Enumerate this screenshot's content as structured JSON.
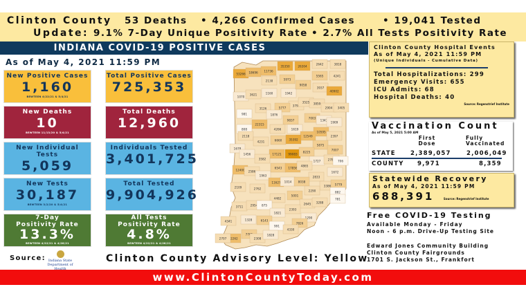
{
  "header": {
    "county": "Clinton County",
    "deaths": "53 Deaths",
    "cases": "• 4,266 Confirmed Cases",
    "tested": "• 19,041 Tested",
    "update_label": "Update:",
    "seven_day": "9.1% 7-Day Unique Positivity Rate",
    "all_tests": "• 2.7% All Tests Positivity Rate"
  },
  "banner": "INDIANA COVID-19 POSITIVE CASES",
  "as_of": "As of May 4, 2021 11:59 PM",
  "stats": [
    {
      "title": "New Positive Cases",
      "value": "1,160",
      "sub": "BEWTEEN 4/22/21 & 5/4/21",
      "color": "#f9bf3b"
    },
    {
      "title": "Total Positive Cases",
      "value": "725,353",
      "sub": "",
      "color": "#f9bf3b"
    },
    {
      "title": "New Deaths",
      "value": "10",
      "sub": "BEWTEEN 11/13/20 & 5/4/21",
      "color": "#a0243d"
    },
    {
      "title": "Total Deaths",
      "value": "12,960",
      "sub": "",
      "color": "#a0243d"
    },
    {
      "title": "New Individual Tests",
      "value": "5,059",
      "sub": "",
      "color": "#5ab4e2"
    },
    {
      "title": "Individuals Tested",
      "value": "3,401,725",
      "sub": "",
      "color": "#5ab4e2"
    },
    {
      "title": "New Tests",
      "value": "30,187",
      "sub": "BEWTEEN 3/2/20 & 5/4/21",
      "color": "#5ab4e2"
    },
    {
      "title": "Total Tested",
      "value": "9,904,926",
      "sub": "",
      "color": "#5ab4e2"
    },
    {
      "title": "7-Day\nPositivity Rate",
      "value": "13.3%",
      "sub": "BEWTEEN 4/22/21 & 4/28/21",
      "color": "#4f7a34"
    },
    {
      "title": "All Tests\nPositivity Rate",
      "value": "4.8%",
      "sub": "BEWTEEN 4/22/21 & 4/28/21",
      "color": "#4f7a34"
    }
  ],
  "source": {
    "label": "Source:",
    "logo_text": "Indiana State Department of Health"
  },
  "advisory": "Clinton County Advisory Level: Yellow",
  "map_counts": [
    53266,
    18696,
    11736,
    35350,
    26304,
    2642,
    3818,
    2138,
    5973,
    5565,
    4241,
    1070,
    3621,
    1160,
    1942,
    9058,
    3937,
    40902,
    3797,
    3126,
    5777,
    3525,
    3859,
    2904,
    3405,
    981,
    1876,
    9837,
    7003,
    1343,
    1909,
    22315,
    4266,
    1619,
    10595,
    808,
    12549,
    2118,
    2397,
    4231,
    6660,
    35392,
    5875,
    7007,
    1678,
    17121,
    99083,
    8225,
    1456,
    3582,
    1727,
    2784,
    706,
    12400,
    2586,
    1963,
    6543,
    17856,
    4865,
    1672,
    2833,
    11627,
    1014,
    8038,
    3386,
    5779,
    2109,
    2762,
    2290,
    882,
    781,
    4482,
    5001,
    3711,
    2954,
    875,
    2645,
    3288,
    1821,
    2393,
    1290,
    4341,
    1328,
    6143,
    7826,
    991,
    4330,
    7761,
    22262,
    2308,
    1828,
    2707
  ],
  "hospital": {
    "title": "Clinton County Hospital Events",
    "as_of": "As of May 4, 2021 11:59 PM",
    "note": "(Unique Individuals - Cumulative Data)",
    "lines": [
      "Total Hospitalizations: 299",
      "Emergency Visits: 655",
      "ICU Admits: 68",
      "Hospital Deaths: 40"
    ],
    "source": "Source: Regenstrief Institute"
  },
  "vaccination": {
    "title": "Vaccination Count",
    "as_of": "As of May 5, 2021 5:00 AM",
    "col1": "First Dose",
    "col2": "Fully Vaccinated",
    "rows": [
      {
        "label": "STATE",
        "first": "2,389,057",
        "full": "2,006,049"
      },
      {
        "label": "COUNTY",
        "first": "9,971",
        "full": "8,359"
      }
    ]
  },
  "recovery": {
    "title": "Statewide Recovery",
    "as_of": "As of May 4, 2021 11:59 PM",
    "value": "688,391",
    "source": "Source: Regenstrief Institute"
  },
  "testing": {
    "title": "Free COVID-19 Testing",
    "line1": "Available Monday - Friday",
    "line2": "Noon - 6 p.m. Drive-Up Testing Site",
    "addr1": "Edward Jones Community Building",
    "addr2": "Clinton County Fairgrounds",
    "addr3": "1701 S. Jackson St., Frankfort"
  },
  "footer": "www.ClintonCountyToday.com"
}
